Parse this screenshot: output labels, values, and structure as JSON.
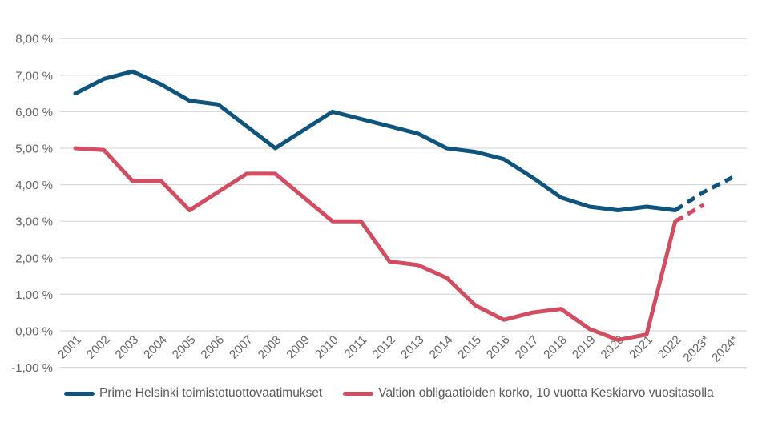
{
  "chart_data": {
    "type": "line",
    "title": "",
    "xlabel": "",
    "ylabel": "",
    "categories": [
      "2001",
      "2002",
      "2003",
      "2004",
      "2005",
      "2006",
      "2007",
      "2008",
      "2009",
      "2010",
      "2011",
      "2012",
      "2013",
      "2014",
      "2015",
      "2016",
      "2017",
      "2018",
      "2019",
      "2020",
      "2021",
      "2022",
      "2023*",
      "2024*"
    ],
    "y_axis": {
      "tick_labels": [
        "8,00 %",
        "7,00 %",
        "6,00 %",
        "5,00 %",
        "4,00 %",
        "3,00 %",
        "2,00 %",
        "1,00 %",
        "0,00 %",
        "-1,00 %"
      ],
      "tick_values": [
        8,
        7,
        6,
        5,
        4,
        3,
        2,
        1,
        0,
        -1
      ],
      "ylim": [
        -1,
        8
      ]
    },
    "grid": true,
    "gridline_color": "#d9d9d9",
    "axis_label_color": "#646464",
    "legend_position": "bottom-left",
    "note": "Dashed segments after 2022 are forecasts (2023*, 2024*)",
    "series": [
      {
        "name": "Prime Helsinki toimistotuottovaatimukset",
        "color": "#0F547C",
        "line_style": "solid, dashed forecast from 2022 onward",
        "dashed_from_index": 21,
        "values": [
          6.5,
          6.9,
          7.1,
          6.75,
          6.3,
          6.2,
          5.6,
          5.0,
          5.5,
          6.0,
          5.8,
          5.6,
          5.4,
          5.0,
          4.9,
          4.7,
          4.2,
          3.65,
          3.4,
          3.3,
          3.4,
          3.3,
          3.8,
          4.2
        ]
      },
      {
        "name": "Valtion obligaatioiden korko, 10 vuotta Keskiarvo vuositasolla",
        "color": "#D14D61",
        "line_style": "solid, dashed forecast from 2022 onward",
        "dashed_from_index": 21,
        "values": [
          5.0,
          4.95,
          4.1,
          4.1,
          3.3,
          3.8,
          4.3,
          4.3,
          3.65,
          3.0,
          3.0,
          1.9,
          1.8,
          1.45,
          0.7,
          0.3,
          0.5,
          0.6,
          0.05,
          -0.25,
          -0.1,
          3.0,
          3.45,
          null
        ]
      }
    ]
  }
}
